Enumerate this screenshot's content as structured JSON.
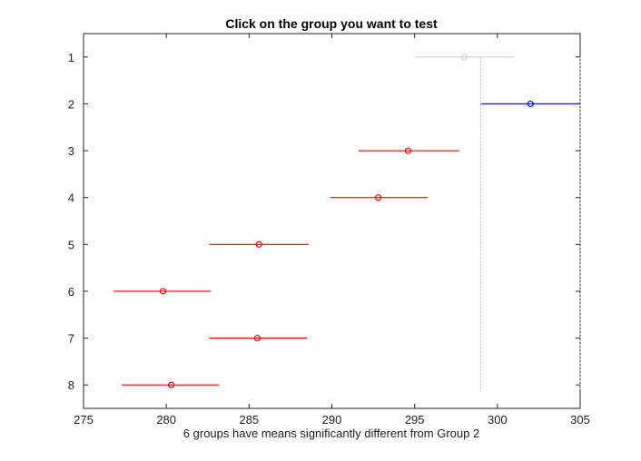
{
  "window": {
    "title": "Click on the group you want to test",
    "status_text": "6 groups have means significantly different from Group 2"
  },
  "chart_data": {
    "type": "scatter",
    "subtype": "multiple-comparison-intervals",
    "title": "Click on the group you want to test",
    "xlabel": "6 groups have means significantly different from Group 2",
    "ylabel": "",
    "xlim": [
      275,
      305
    ],
    "xticks": [
      275,
      280,
      285,
      290,
      295,
      300,
      305
    ],
    "ylim": [
      0.5,
      8.5
    ],
    "yticks": [
      1,
      2,
      3,
      4,
      5,
      6,
      7,
      8
    ],
    "y_reversed": true,
    "grid": false,
    "selected_group": 2,
    "groups": [
      {
        "label": "1",
        "mean": 298.0,
        "lower": 295.1,
        "upper": 301.0,
        "status": "not-significant",
        "color": "#cfcfcf"
      },
      {
        "label": "2",
        "mean": 302.0,
        "lower": 299.0,
        "upper": 305.0,
        "status": "selected",
        "color": "#0000ff"
      },
      {
        "label": "3",
        "mean": 294.6,
        "lower": 291.6,
        "upper": 297.7,
        "status": "significant",
        "color": "#ff0000"
      },
      {
        "label": "4",
        "mean": 292.8,
        "lower": 289.9,
        "upper": 295.8,
        "status": "significant",
        "color": "#ff0000"
      },
      {
        "label": "5",
        "mean": 285.6,
        "lower": 282.6,
        "upper": 288.6,
        "status": "significant",
        "color": "#ff0000"
      },
      {
        "label": "6",
        "mean": 279.8,
        "lower": 276.8,
        "upper": 282.7,
        "status": "significant",
        "color": "#ff0000"
      },
      {
        "label": "7",
        "mean": 285.5,
        "lower": 282.6,
        "upper": 288.5,
        "status": "significant",
        "color": "#ff0000"
      },
      {
        "label": "8",
        "mean": 280.3,
        "lower": 277.3,
        "upper": 283.2,
        "status": "significant",
        "color": "#ff0000"
      }
    ],
    "reference_lines": [
      {
        "x": 299.0,
        "style": "dotted",
        "color": "#bbbbbb"
      },
      {
        "x": 305.0,
        "style": "dotted",
        "color": "#bbbbbb"
      }
    ]
  }
}
